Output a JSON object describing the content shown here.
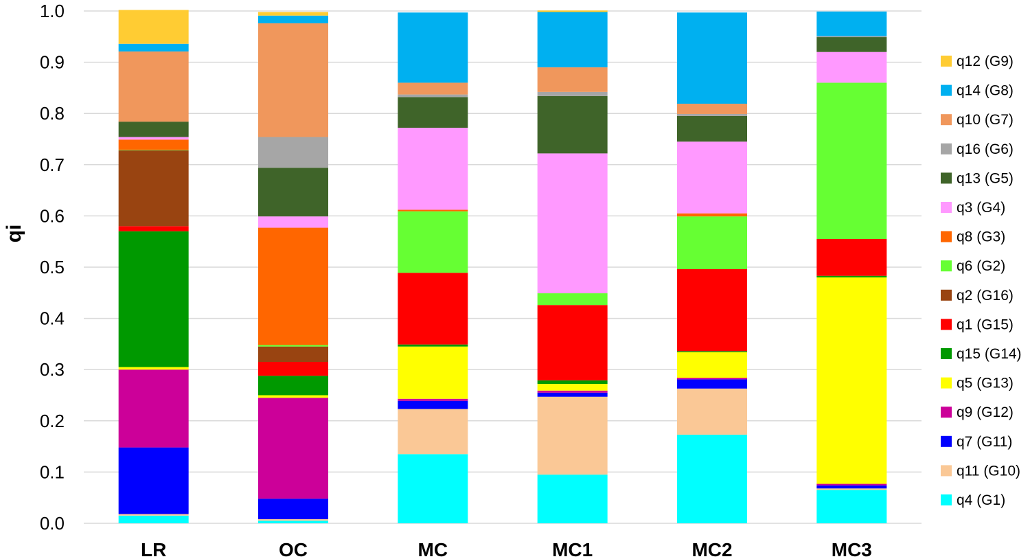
{
  "chart_data": {
    "type": "bar",
    "stacked": true,
    "title": "",
    "xlabel": "",
    "ylabel": "qi",
    "ylim": [
      0,
      1.0
    ],
    "yticks": [
      "0.0",
      "0.1",
      "0.2",
      "0.3",
      "0.4",
      "0.5",
      "0.6",
      "0.7",
      "0.8",
      "0.9",
      "1.0"
    ],
    "grid": true,
    "legend_position": "right",
    "categories": [
      "LR",
      "OC",
      "MC",
      "MC1",
      "MC2",
      "MC3"
    ],
    "series": [
      {
        "name": "q4 (G1)",
        "color": "#00FFFF",
        "values": [
          0.015,
          0.005,
          0.135,
          0.095,
          0.173,
          0.065
        ]
      },
      {
        "name": "q11 (G10)",
        "color": "#FAC896",
        "values": [
          0.003,
          0.003,
          0.088,
          0.152,
          0.09,
          0.003
        ]
      },
      {
        "name": "q7 (G11)",
        "color": "#0000FF",
        "values": [
          0.13,
          0.04,
          0.016,
          0.008,
          0.018,
          0.006
        ]
      },
      {
        "name": "q9 (G12)",
        "color": "#CC0099",
        "values": [
          0.152,
          0.197,
          0.004,
          0.004,
          0.003,
          0.003
        ]
      },
      {
        "name": "q5 (G13)",
        "color": "#FFFF00",
        "values": [
          0.005,
          0.005,
          0.102,
          0.013,
          0.05,
          0.403
        ]
      },
      {
        "name": "q15 (G14)",
        "color": "#009900",
        "values": [
          0.265,
          0.038,
          0.004,
          0.007,
          0.002,
          0.003
        ]
      },
      {
        "name": "q1 (G15)",
        "color": "#FF0000",
        "values": [
          0.01,
          0.027,
          0.14,
          0.147,
          0.16,
          0.072
        ]
      },
      {
        "name": "q2 (G16)",
        "color": "#994411",
        "values": [
          0.148,
          0.03,
          0.0,
          0.0,
          0.0,
          0.0
        ]
      },
      {
        "name": "q6 (G2)",
        "color": "#66FF33",
        "values": [
          0.001,
          0.003,
          0.12,
          0.023,
          0.103,
          0.305
        ]
      },
      {
        "name": "q8 (G3)",
        "color": "#FF6600",
        "values": [
          0.02,
          0.229,
          0.003,
          0.0,
          0.006,
          0.0
        ]
      },
      {
        "name": "q3 (G4)",
        "color": "#FF99FF",
        "values": [
          0.005,
          0.022,
          0.16,
          0.273,
          0.14,
          0.06
        ]
      },
      {
        "name": "q13 (G5)",
        "color": "#3F6429",
        "values": [
          0.03,
          0.095,
          0.06,
          0.112,
          0.05,
          0.029
        ]
      },
      {
        "name": "q16 (G6)",
        "color": "#A6A6A6",
        "values": [
          0.0,
          0.06,
          0.005,
          0.008,
          0.004,
          0.002
        ]
      },
      {
        "name": "q10 (G7)",
        "color": "#F0975C",
        "values": [
          0.137,
          0.222,
          0.023,
          0.048,
          0.02,
          0.0
        ]
      },
      {
        "name": "q14 (G8)",
        "color": "#00B0F0",
        "values": [
          0.015,
          0.015,
          0.137,
          0.108,
          0.178,
          0.048
        ]
      },
      {
        "name": "q12 (G9)",
        "color": "#FFCC33",
        "values": [
          0.066,
          0.007,
          0.0,
          0.003,
          0.0,
          0.0
        ]
      }
    ]
  }
}
